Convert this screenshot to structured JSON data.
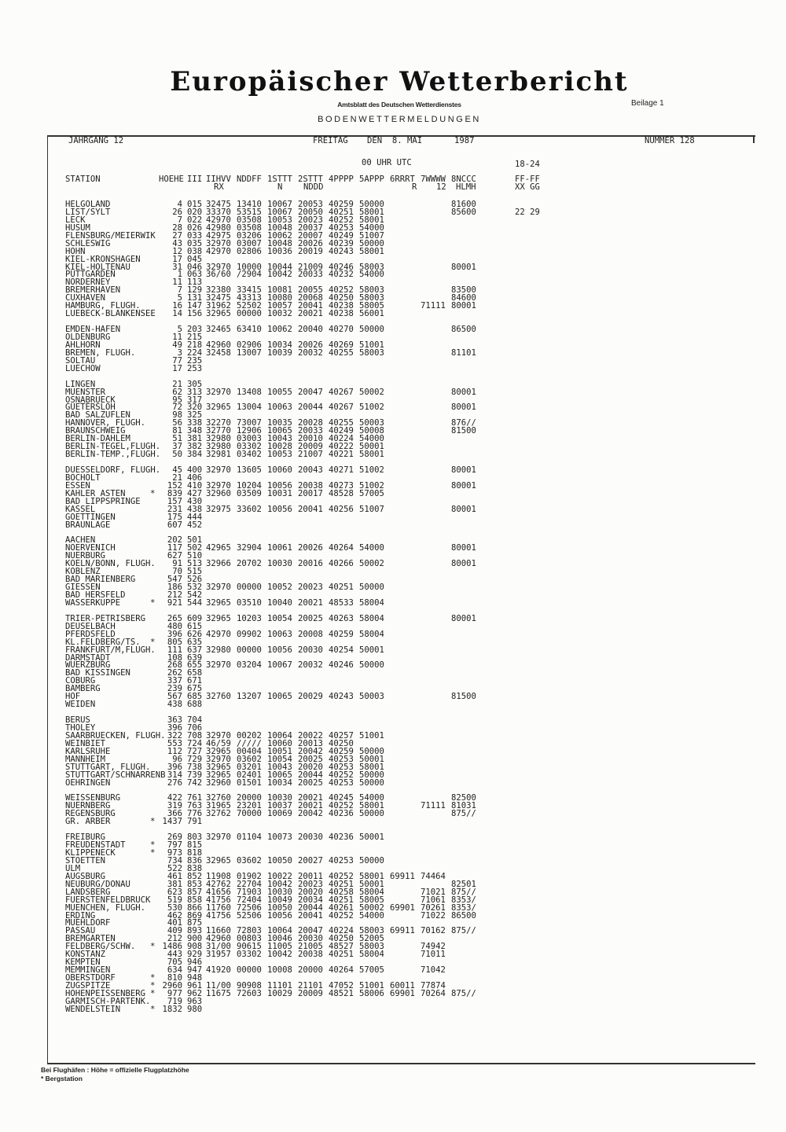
{
  "header": {
    "title": "Europäischer Wetterbericht",
    "subtitle": "Amtsblatt des Deutschen Wetterdienstes",
    "supplement": "Beilage 1",
    "section": "BODENWETTERMELDUNGEN",
    "volume": "JAHRGANG 12",
    "weekday": "FREITAG",
    "date": "DEN  8. MAI",
    "year": "1987",
    "number": "NUMMER 128"
  },
  "table": {
    "time_label": "00 UHR UTC",
    "period_label": "18-24",
    "columns": [
      "STATION",
      "HOEHE",
      "III",
      "IIHVV",
      "NDDFF",
      "1STTT",
      "2STTT",
      "4PPPP",
      "5APPP",
      "6RRRT",
      "7WWWW",
      "8NCCC",
      "FF-FF"
    ],
    "subcolumns": {
      "iihvv": "RX",
      "sttt1": "N",
      "sttt2": "NDDD",
      "rrrt": "R",
      "wwww": "12",
      "nccc": "HLMH",
      "ff": "XX GG"
    },
    "groups": [
      [
        [
          "HELGOLAND",
          "",
          "4",
          "015",
          "32475",
          "13410",
          "10067",
          "20053",
          "40259",
          "50000",
          "",
          "",
          "81600"
        ],
        [
          "LIST/SYLT",
          "",
          "26",
          "020",
          "33370",
          "53515",
          "10067",
          "20050",
          "40251",
          "58001",
          "",
          "",
          "85600",
          "22 29"
        ],
        [
          "LECK",
          "",
          "7",
          "022",
          "42970",
          "03508",
          "10053",
          "20023",
          "40252",
          "58001"
        ],
        [
          "HUSUM",
          "",
          "28",
          "026",
          "42980",
          "03508",
          "10048",
          "20037",
          "40253",
          "54000"
        ],
        [
          "FLENSBURG/MEIERWIK",
          "",
          "27",
          "033",
          "42975",
          "03206",
          "10062",
          "20007",
          "40249",
          "51007"
        ],
        [
          "SCHLESWIG",
          "",
          "43",
          "035",
          "32970",
          "03007",
          "10048",
          "20026",
          "40239",
          "50000"
        ],
        [
          "HOHN",
          "",
          "12",
          "038",
          "42970",
          "02806",
          "10036",
          "20019",
          "40243",
          "58001"
        ],
        [
          "KIEL-KRONSHAGEN",
          "",
          "17",
          "045"
        ],
        [
          "KIEL-HOLTENAU",
          "",
          "31",
          "046",
          "32970",
          "10000",
          "10044",
          "21009",
          "40246",
          "58003",
          "",
          "",
          "80001"
        ],
        [
          "PUTTGARDEN",
          "",
          "1",
          "063",
          "36/60",
          "/2904",
          "10042",
          "20033",
          "40232",
          "54000"
        ],
        [
          "NORDERNEY",
          "",
          "11",
          "113"
        ],
        [
          "BREMERHAVEN",
          "",
          "7",
          "129",
          "32380",
          "33415",
          "10081",
          "20055",
          "40252",
          "58003",
          "",
          "",
          "83500"
        ],
        [
          "CUXHAVEN",
          "",
          "5",
          "131",
          "32475",
          "43313",
          "10080",
          "20068",
          "40250",
          "58003",
          "",
          "",
          "84600"
        ],
        [
          "HAMBURG, FLUGH.",
          "",
          "16",
          "147",
          "31962",
          "52502",
          "10057",
          "20041",
          "40238",
          "58005",
          "",
          "71111",
          "80001"
        ],
        [
          "LUEBECK-BLANKENSEE",
          "",
          "14",
          "156",
          "32965",
          "00000",
          "10032",
          "20021",
          "40238",
          "56001"
        ]
      ],
      [
        [
          "EMDEN-HAFEN",
          "",
          "5",
          "203",
          "32465",
          "63410",
          "10062",
          "20040",
          "40270",
          "50000",
          "",
          "",
          "86500"
        ],
        [
          "OLDENBURG",
          "",
          "11",
          "215"
        ],
        [
          "AHLHORN",
          "",
          "49",
          "218",
          "42960",
          "02906",
          "10034",
          "20026",
          "40269",
          "51001"
        ],
        [
          "BREMEN, FLUGH.",
          "",
          "3",
          "224",
          "32458",
          "13007",
          "10039",
          "20032",
          "40255",
          "58003",
          "",
          "",
          "81101"
        ],
        [
          "SOLTAU",
          "",
          "77",
          "235"
        ],
        [
          "LUECHOW",
          "",
          "17",
          "253"
        ]
      ],
      [
        [
          "LINGEN",
          "",
          "21",
          "305"
        ],
        [
          "MUENSTER",
          "",
          "62",
          "313",
          "32970",
          "13408",
          "10055",
          "20047",
          "40267",
          "50002",
          "",
          "",
          "80001"
        ],
        [
          "OSNABRUECK",
          "",
          "95",
          "317"
        ],
        [
          "GUETERSLOH",
          "",
          "72",
          "320",
          "32965",
          "13004",
          "10063",
          "20044",
          "40267",
          "51002",
          "",
          "",
          "80001"
        ],
        [
          "BAD SALZUFLEN",
          "",
          "98",
          "325"
        ],
        [
          "HANNOVER, FLUGH.",
          "",
          "56",
          "338",
          "32270",
          "73007",
          "10035",
          "20028",
          "40255",
          "50003",
          "",
          "",
          "876//"
        ],
        [
          "BRAUNSCHWEIG",
          "",
          "81",
          "348",
          "32770",
          "12906",
          "10065",
          "20033",
          "40249",
          "50008",
          "",
          "",
          "81500"
        ],
        [
          "BERLIN-DAHLEM",
          "",
          "51",
          "381",
          "32980",
          "03003",
          "10043",
          "20010",
          "40224",
          "54000"
        ],
        [
          "BERLIN-TEGEL,FLUGH.",
          "",
          "37",
          "382",
          "32980",
          "03302",
          "10028",
          "20009",
          "40222",
          "50001"
        ],
        [
          "BERLIN-TEMP.,FLUGH.",
          "",
          "50",
          "384",
          "32981",
          "03402",
          "10053",
          "21007",
          "40221",
          "58001"
        ]
      ],
      [
        [
          "DUESSELDORF, FLUGH.",
          "",
          "45",
          "400",
          "32970",
          "13605",
          "10060",
          "20043",
          "40271",
          "51002",
          "",
          "",
          "80001"
        ],
        [
          "BOCHOLT",
          "",
          "21",
          "406"
        ],
        [
          "ESSEN",
          "",
          "152",
          "410",
          "32970",
          "10204",
          "10056",
          "20038",
          "40273",
          "51002",
          "",
          "",
          "80001"
        ],
        [
          "KAHLER ASTEN",
          "*",
          "839",
          "427",
          "32960",
          "03509",
          "10031",
          "20017",
          "48528",
          "57005"
        ],
        [
          "BAD LIPPSPRINGE",
          "",
          "157",
          "430"
        ],
        [
          "KASSEL",
          "",
          "231",
          "438",
          "32975",
          "33602",
          "10056",
          "20041",
          "40256",
          "51007",
          "",
          "",
          "80001"
        ],
        [
          "GOETTINGEN",
          "",
          "175",
          "444"
        ],
        [
          "BRAUNLAGE",
          "",
          "607",
          "452"
        ]
      ],
      [
        [
          "AACHEN",
          "",
          "202",
          "501"
        ],
        [
          "NOERVENICH",
          "",
          "117",
          "502",
          "42965",
          "32904",
          "10061",
          "20026",
          "40264",
          "54000",
          "",
          "",
          "80001"
        ],
        [
          "NUERBURG",
          "",
          "627",
          "510"
        ],
        [
          "KOELN/BONN, FLUGH.",
          "",
          "91",
          "513",
          "32966",
          "20702",
          "10030",
          "20016",
          "40266",
          "50002",
          "",
          "",
          "80001"
        ],
        [
          "KOBLENZ",
          "",
          "70",
          "515"
        ],
        [
          "BAD MARIENBERG",
          "",
          "547",
          "526"
        ],
        [
          "GIESSEN",
          "",
          "186",
          "532",
          "32970",
          "00000",
          "10052",
          "20023",
          "40251",
          "50000"
        ],
        [
          "BAD HERSFELD",
          "",
          "212",
          "542"
        ],
        [
          "WASSERKUPPE",
          "*",
          "921",
          "544",
          "32965",
          "03510",
          "10040",
          "20021",
          "48533",
          "58004"
        ]
      ],
      [
        [
          "TRIER-PETRISBERG",
          "",
          "265",
          "609",
          "32965",
          "10203",
          "10054",
          "20025",
          "40263",
          "58004",
          "",
          "",
          "80001"
        ],
        [
          "DEUSELBACH",
          "",
          "480",
          "615"
        ],
        [
          "PFERDSFELD",
          "",
          "396",
          "626",
          "42970",
          "09902",
          "10063",
          "20008",
          "40259",
          "58004"
        ],
        [
          "KL.FELDBERG/TS.",
          "*",
          "805",
          "635"
        ],
        [
          "FRANKFURT/M,FLUGH.",
          "",
          "111",
          "637",
          "32980",
          "00000",
          "10056",
          "20030",
          "40254",
          "50001"
        ],
        [
          "DARMSTADT",
          "",
          "108",
          "639"
        ],
        [
          "WUERZBURG",
          "",
          "268",
          "655",
          "32970",
          "03204",
          "10067",
          "20032",
          "40246",
          "50000"
        ],
        [
          "BAD KISSINGEN",
          "",
          "262",
          "658"
        ],
        [
          "COBURG",
          "",
          "337",
          "671"
        ],
        [
          "BAMBERG",
          "",
          "239",
          "675"
        ],
        [
          "HOF",
          "",
          "567",
          "685",
          "32760",
          "13207",
          "10065",
          "20029",
          "40243",
          "50003",
          "",
          "",
          "81500"
        ],
        [
          "WEIDEN",
          "",
          "438",
          "688"
        ]
      ],
      [
        [
          "BERUS",
          "",
          "363",
          "704"
        ],
        [
          "THOLEY",
          "",
          "396",
          "706"
        ],
        [
          "SAARBRUECKEN, FLUGH.",
          "",
          "322",
          "708",
          "32970",
          "00202",
          "10064",
          "20022",
          "40257",
          "51001"
        ],
        [
          "WEINBIET",
          "",
          "553",
          "724",
          "46/59",
          "/////",
          "10060",
          "20013",
          "40250"
        ],
        [
          "KARLSRUHE",
          "",
          "112",
          "727",
          "32965",
          "00404",
          "10051",
          "20042",
          "40259",
          "50000"
        ],
        [
          "MANNHEIM",
          "",
          "96",
          "729",
          "32970",
          "03602",
          "10054",
          "20025",
          "40253",
          "50001"
        ],
        [
          "STUTTGART, FLUGH.",
          "",
          "396",
          "738",
          "32965",
          "03201",
          "10043",
          "20020",
          "40253",
          "58001"
        ],
        [
          "STUTTGART/SCHNARRENB",
          "",
          "314",
          "739",
          "32965",
          "02401",
          "10065",
          "20044",
          "40252",
          "50000"
        ],
        [
          "OEHRINGEN",
          "",
          "276",
          "742",
          "32960",
          "01501",
          "10034",
          "20025",
          "40253",
          "50000"
        ]
      ],
      [
        [
          "WEISSENBURG",
          "",
          "422",
          "761",
          "32760",
          "20000",
          "10030",
          "20021",
          "40245",
          "54000",
          "",
          "",
          "82500"
        ],
        [
          "NUERNBERG",
          "",
          "319",
          "763",
          "31965",
          "23201",
          "10037",
          "20021",
          "40252",
          "58001",
          "",
          "71111",
          "81031"
        ],
        [
          "REGENSBURG",
          "",
          "366",
          "776",
          "32762",
          "70000",
          "10069",
          "20042",
          "40236",
          "50000",
          "",
          "",
          "875//"
        ],
        [
          "GR. ARBER",
          "*",
          "1437",
          "791"
        ]
      ],
      [
        [
          "FREIBURG",
          "",
          "269",
          "803",
          "32970",
          "01104",
          "10073",
          "20030",
          "40236",
          "50001"
        ],
        [
          "FREUDENSTADT",
          "*",
          "797",
          "815"
        ],
        [
          "KLIPPENECK",
          "*",
          "973",
          "818"
        ],
        [
          "STOETTEN",
          "",
          "734",
          "836",
          "32965",
          "03602",
          "10050",
          "20027",
          "40253",
          "50000"
        ],
        [
          "ULM",
          "",
          "522",
          "838"
        ],
        [
          "AUGSBURG",
          "",
          "461",
          "852",
          "11908",
          "01902",
          "10022",
          "20011",
          "40252",
          "58001",
          "69911",
          "74464"
        ],
        [
          "NEUBURG/DONAU",
          "",
          "381",
          "853",
          "42762",
          "22704",
          "10042",
          "20023",
          "40251",
          "50001",
          "",
          "",
          "82501"
        ],
        [
          "LANDSBERG",
          "",
          "623",
          "857",
          "41656",
          "71903",
          "10030",
          "20020",
          "40258",
          "58004",
          "",
          "71021",
          "875//"
        ],
        [
          "FUERSTENFELDBRUCK",
          "",
          "519",
          "858",
          "41756",
          "72404",
          "10049",
          "20034",
          "40251",
          "58005",
          "",
          "71061",
          "8353/"
        ],
        [
          "MUENCHEN, FLUGH.",
          "",
          "530",
          "866",
          "11760",
          "72506",
          "10050",
          "20044",
          "40261",
          "50002",
          "69901",
          "70261",
          "8353/"
        ],
        [
          "ERDING",
          "",
          "462",
          "869",
          "41756",
          "52506",
          "10056",
          "20041",
          "40252",
          "54000",
          "",
          "71022",
          "86500"
        ],
        [
          "MUEHLDORF",
          "",
          "401",
          "875"
        ],
        [
          "PASSAU",
          "",
          "409",
          "893",
          "11660",
          "72803",
          "10064",
          "20047",
          "40224",
          "58003",
          "69911",
          "70162",
          "875//"
        ],
        [
          "BREMGARTEN",
          "",
          "212",
          "900",
          "42960",
          "00803",
          "10046",
          "20030",
          "40250",
          "52005"
        ],
        [
          "FELDBERG/SCHW.",
          "*",
          "1486",
          "908",
          "31/00",
          "90615",
          "11005",
          "21005",
          "48527",
          "58003",
          "",
          "74942"
        ],
        [
          "KONSTANZ",
          "",
          "443",
          "929",
          "31957",
          "03302",
          "10042",
          "20038",
          "40251",
          "58004",
          "",
          "71011"
        ],
        [
          "KEMPTEN",
          "",
          "705",
          "946"
        ],
        [
          "MEMMINGEN",
          "",
          "634",
          "947",
          "41920",
          "00000",
          "10008",
          "20000",
          "40264",
          "57005",
          "",
          "71042"
        ],
        [
          "OBERSTDORF",
          "*",
          "810",
          "948"
        ],
        [
          "ZUGSPITZE",
          "*",
          "2960",
          "961",
          "11/00",
          "90908",
          "11101",
          "21101",
          "47052",
          "51001",
          "60011",
          "77874"
        ],
        [
          "HOHENPEISSENBERG",
          "*",
          "977",
          "962",
          "11675",
          "72603",
          "10029",
          "20009",
          "48521",
          "58006",
          "69901",
          "70264",
          "875//"
        ],
        [
          "GARMISCH-PARTENK.",
          "",
          "719",
          "963"
        ],
        [
          "WENDELSTEIN",
          "*",
          "1832",
          "980"
        ]
      ]
    ]
  },
  "footer": {
    "note": "Bei Flughäfen : Höhe = offizielle Flugplatzhöhe",
    "legend": "* Bergstation"
  }
}
